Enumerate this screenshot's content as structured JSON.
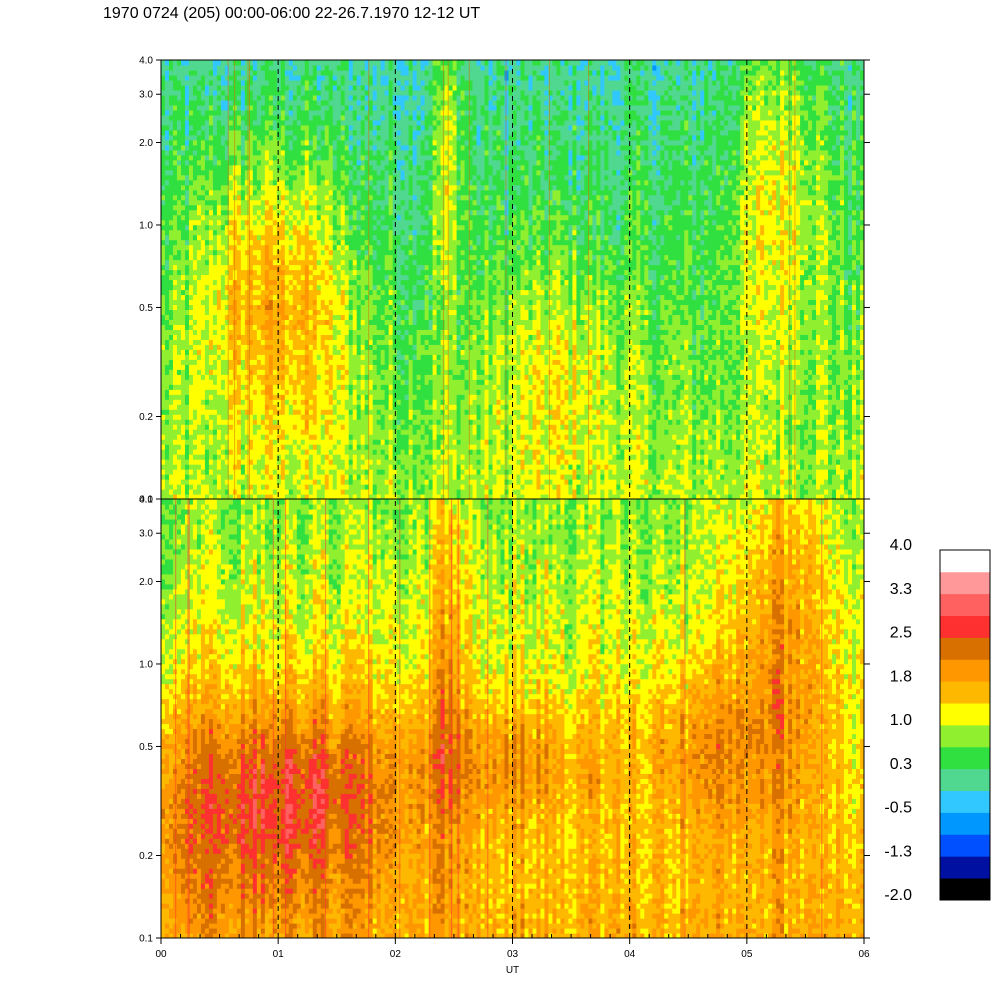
{
  "header": {
    "title": "1970 0724 (205) 00:00-06:00 22-26.7.1970  12-12 UT"
  },
  "colors": {
    "scale": [
      "#000000",
      "#0010a0",
      "#0050ff",
      "#0098ff",
      "#30c8ff",
      "#50d890",
      "#30e040",
      "#90f030",
      "#ffff00",
      "#ffb800",
      "#ff9800",
      "#d87000",
      "#ff3030",
      "#ff6060",
      "#ff9898",
      "#ffffff"
    ],
    "axis": "#000000",
    "dashed_line": "#000000"
  },
  "chart_data": {
    "type": "heatmap",
    "panels": [
      {
        "name": "",
        "y_scale": "log",
        "ylim": [
          0.1,
          4.0
        ],
        "y_ticks": [
          "0.1",
          "0.2",
          "0.5",
          "1.0",
          "2.0",
          "3.0",
          "4.0"
        ],
        "y_tick_values": [
          0.1,
          0.2,
          0.5,
          1.0,
          2.0,
          3.0,
          4.0
        ],
        "base_level": 0.9,
        "features": [
          {
            "x": 0.75,
            "y": 0.6,
            "level": 1.9,
            "spread_x": 0.35,
            "spread_y": 0.35
          },
          {
            "x": 1.25,
            "y": 0.5,
            "level": 1.7,
            "spread_x": 0.3,
            "spread_y": 0.4
          },
          {
            "x": 2.45,
            "y": 2.0,
            "level": 1.8,
            "spread_x": 0.1,
            "spread_y": 0.4
          },
          {
            "x": 3.4,
            "y": 0.3,
            "level": 1.5,
            "spread_x": 0.4,
            "spread_y": 0.3
          },
          {
            "x": 5.3,
            "y": 1.5,
            "level": 2.0,
            "spread_x": 0.3,
            "spread_y": 0.5
          }
        ]
      },
      {
        "name": "",
        "y_scale": "log",
        "ylim": [
          0.1,
          4.0
        ],
        "y_ticks": [
          "0.1",
          "0.2",
          "0.5",
          "1.0",
          "2.0",
          "3.0",
          "4.0"
        ],
        "y_tick_values": [
          0.1,
          0.2,
          0.5,
          1.0,
          2.0,
          3.0,
          4.0
        ],
        "base_level": 1.7,
        "features": [
          {
            "x": 0.4,
            "y": 0.3,
            "level": 2.5,
            "spread_x": 0.8,
            "spread_y": 0.3
          },
          {
            "x": 1.3,
            "y": 0.35,
            "level": 2.6,
            "spread_x": 0.6,
            "spread_y": 0.25
          },
          {
            "x": 2.45,
            "y": 1.2,
            "level": 2.6,
            "spread_x": 0.1,
            "spread_y": 0.6
          },
          {
            "x": 3.0,
            "y": 0.45,
            "level": 2.4,
            "spread_x": 0.6,
            "spread_y": 0.15
          },
          {
            "x": 4.7,
            "y": 0.5,
            "level": 2.4,
            "spread_x": 0.4,
            "spread_y": 0.2
          },
          {
            "x": 5.3,
            "y": 1.5,
            "level": 2.7,
            "spread_x": 0.3,
            "spread_y": 0.5
          }
        ]
      }
    ],
    "x_axis": {
      "label": "UT",
      "xlim": [
        0,
        6
      ],
      "ticks": [
        "00",
        "01",
        "02",
        "03",
        "04",
        "05",
        "06"
      ],
      "tick_values": [
        0,
        1,
        2,
        3,
        4,
        5,
        6
      ],
      "minor_per_major": 6,
      "dashed_lines_at": [
        1,
        2,
        3,
        4,
        5
      ]
    },
    "colorbar": {
      "labels": [
        "4.0",
        "3.3",
        "2.5",
        "1.8",
        "1.0",
        "0.3",
        "-0.5",
        "-1.3",
        "-2.0"
      ],
      "min": -2.0,
      "max": 4.0
    }
  }
}
